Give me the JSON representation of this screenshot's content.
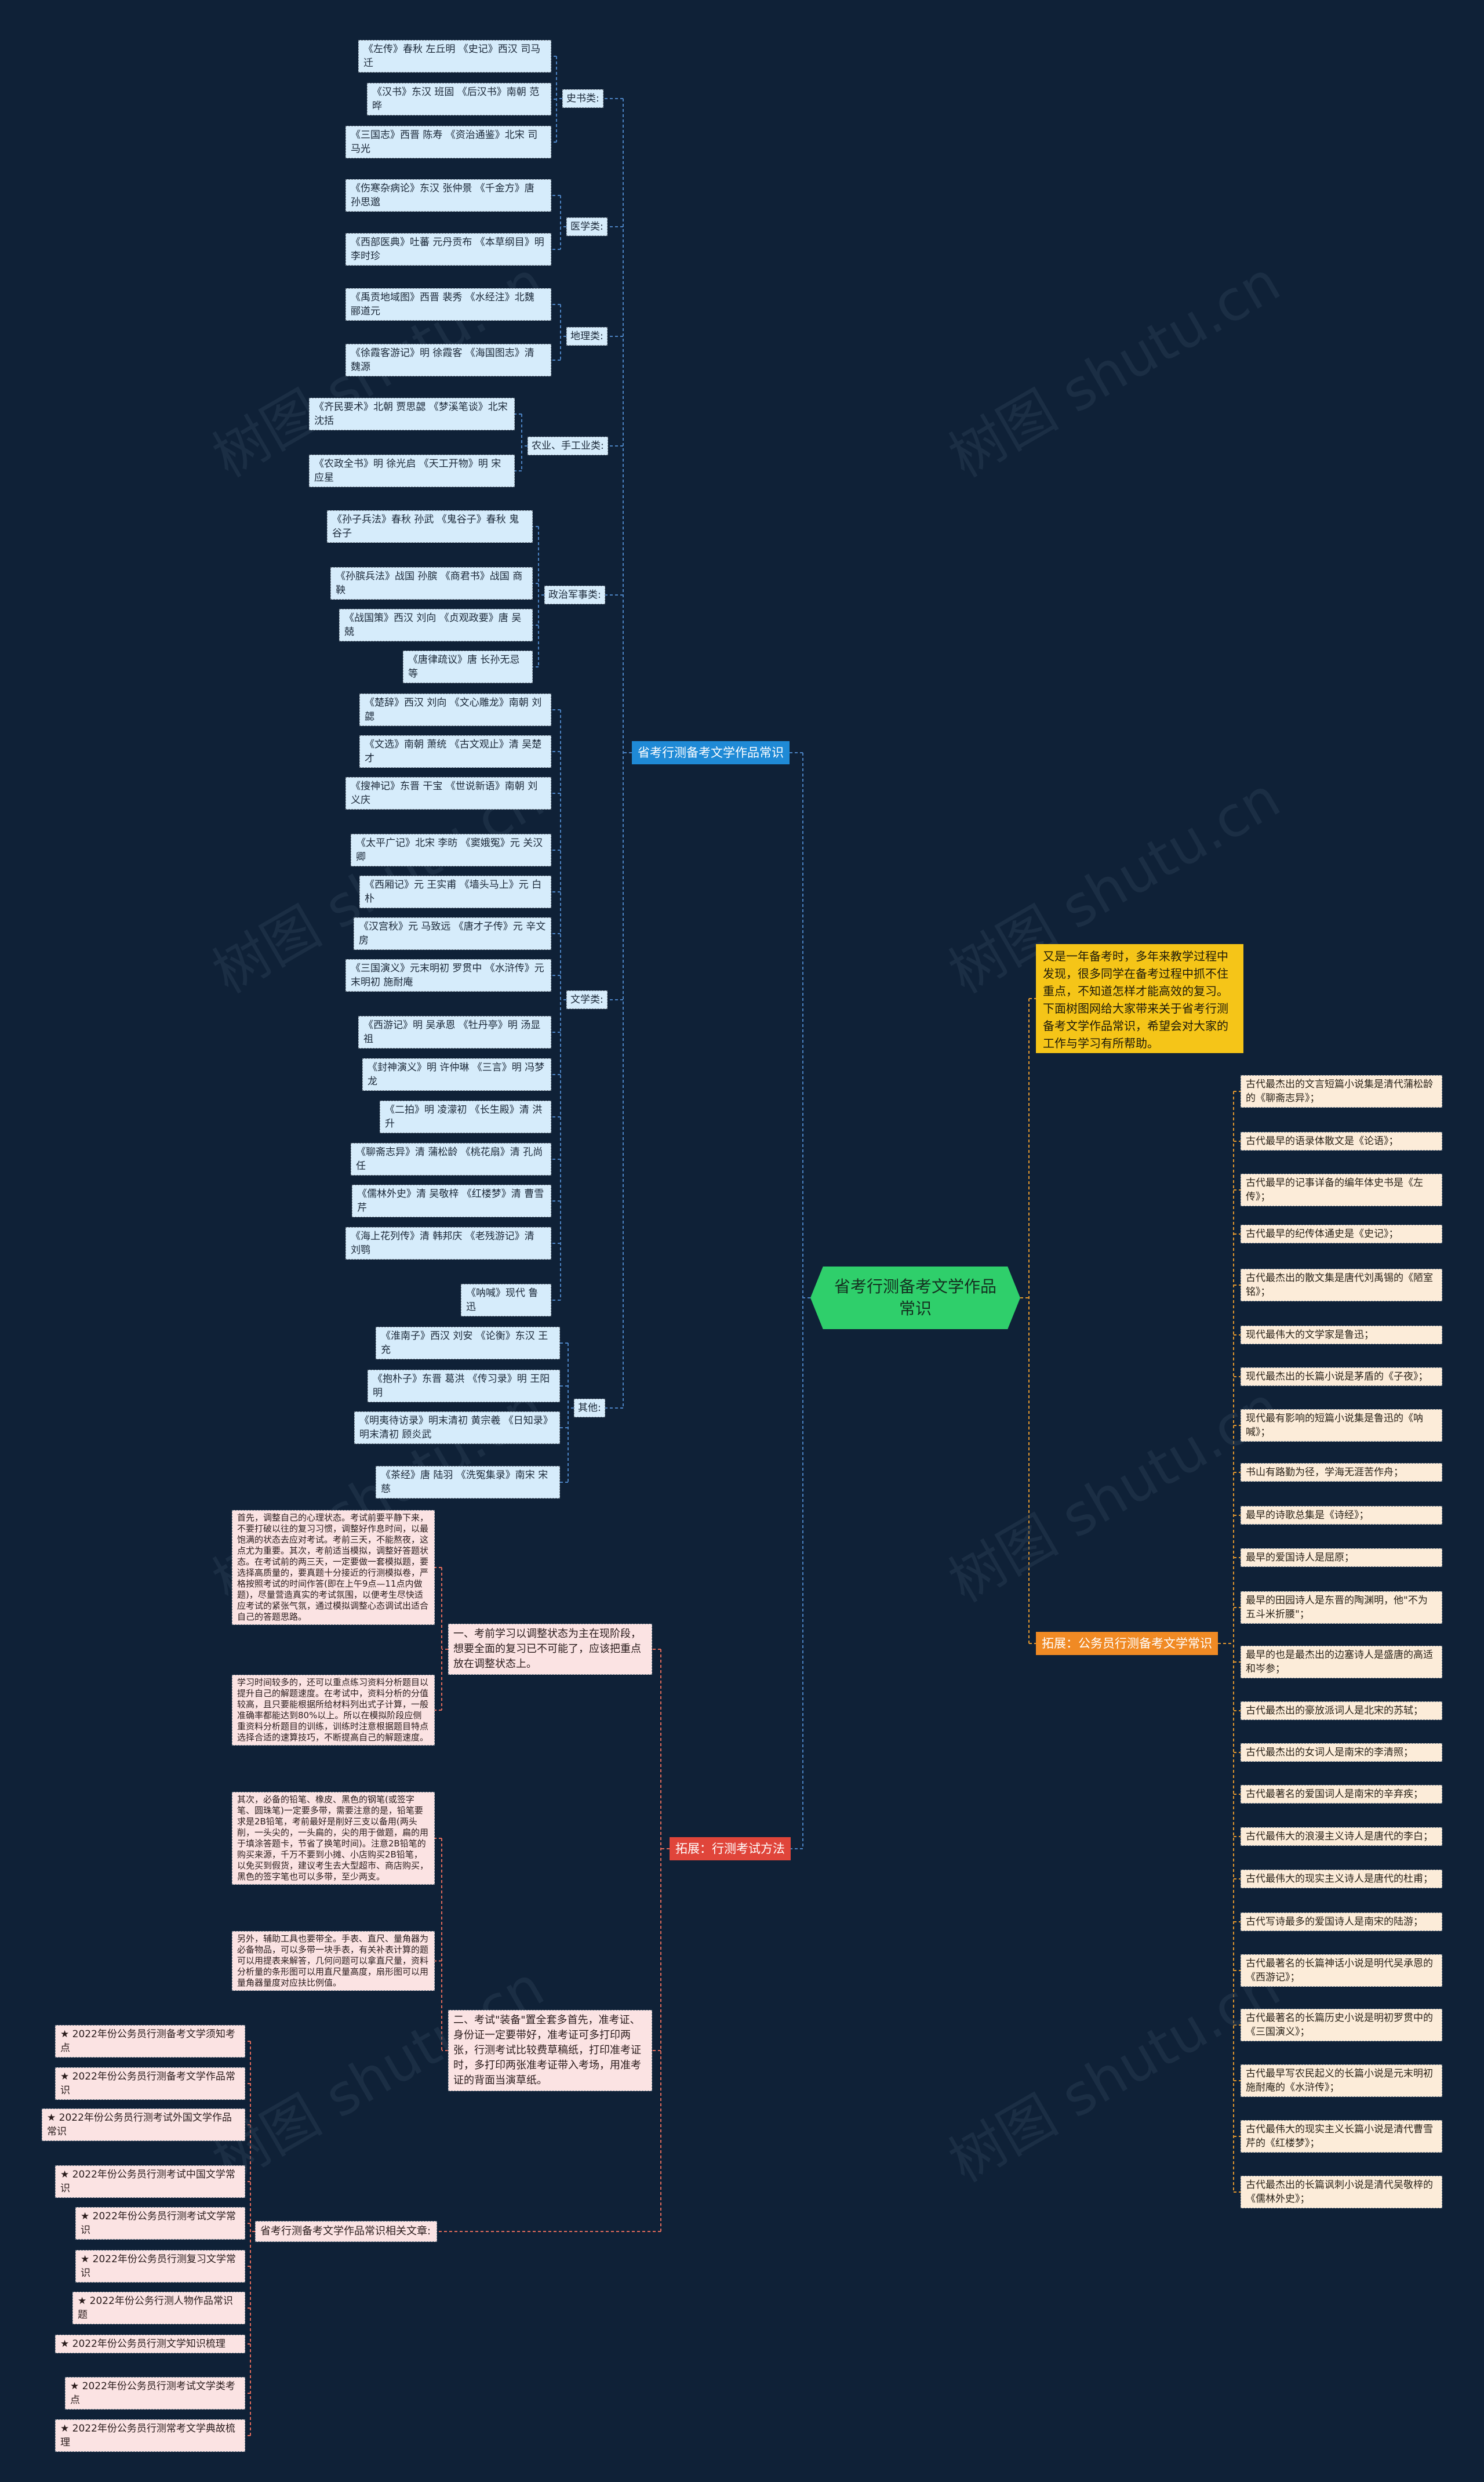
{
  "root": "省考行测备考文学作品常识",
  "intro": "又是一年备考时，多年来教学过程中发现，很多同学在备考过程中抓不住重点，不知道怎样才能高效的复习。下面树图网给大家带来关于省考行测备考文学作品常识，希望会对大家的工作与学习有所帮助。",
  "watermark": "树图 shutu.cn",
  "branch_main": "省考行测备考文学作品常识",
  "branch_exam": "拓展：行测考试方法",
  "branch_gwy": "拓展：公务员行测备考文学常识",
  "categories": {
    "history": "史书类:",
    "medical": "医学类:",
    "geo": "地理类:",
    "agri": "农业、手工业类:",
    "military": "政治军事类:",
    "lit": "文学类:",
    "other": "其他:"
  },
  "history_items": [
    "《左传》春秋 左丘明 《史记》西汉 司马迁",
    "《汉书》东汉 班固 《后汉书》南朝 范晔",
    "《三国志》西晋 陈寿 《资治通鉴》北宋 司马光"
  ],
  "medical_items": [
    "《伤寒杂病论》东汉 张仲景 《千金方》唐 孙思邈",
    "《西部医典》吐蕃 元丹贡布 《本草纲目》明 李时珍"
  ],
  "geo_items": [
    "《禹贡地域图》西晋 裴秀 《水经注》北魏 郦道元",
    "《徐霞客游记》明 徐霞客 《海国图志》清 魏源"
  ],
  "agri_items": [
    "《齐民要术》北朝 贾思勰 《梦溪笔谈》北宋 沈括",
    "《农政全书》明 徐光启 《天工开物》明 宋应星"
  ],
  "military_items": [
    "《孙子兵法》春秋 孙武 《鬼谷子》春秋 鬼谷子",
    "《孙膑兵法》战国 孙膑 《商君书》战国 商鞅",
    "《战国策》西汉 刘向 《贞观政要》唐 吴兢",
    "《唐律疏议》唐 长孙无忌等"
  ],
  "lit_items": [
    "《楚辞》西汉 刘向 《文心雕龙》南朝 刘勰",
    "《文选》南朝 萧统 《古文观止》清 吴楚才",
    "《搜神记》东晋 干宝 《世说新语》南朝 刘义庆",
    "《太平广记》北宋 李昉 《窦娥冤》元 关汉卿",
    "《西厢记》元 王实甫 《墙头马上》元 白朴",
    "《汉宫秋》元 马致远 《唐才子传》元 辛文房",
    "《三国演义》元末明初 罗贯中 《水浒传》元末明初 施耐庵",
    "《西游记》明 吴承恩 《牡丹亭》明 汤显祖",
    "《封神演义》明 许仲琳 《三言》明 冯梦龙",
    "《二拍》明 凌濛初 《长生殿》清 洪升",
    "《聊斋志异》清 蒲松龄 《桃花扇》清 孔尚任",
    "《儒林外史》清 吴敬梓 《红楼梦》清 曹雪芹",
    "《海上花列传》清 韩邦庆 《老残游记》清 刘鹗",
    "《呐喊》现代 鲁迅"
  ],
  "other_items": [
    "《淮南子》西汉 刘安 《论衡》东汉 王充",
    "《抱朴子》东晋 葛洪 《传习录》明 王阳明",
    "《明夷待访录》明末清初 黄宗羲 《日知录》明末清初 顾炎武",
    "《茶经》唐 陆羽 《洗冤集录》南宋 宋慈"
  ],
  "exam_point1": "一、考前学习以调整状态为主在现阶段，想要全面的复习已不可能了，应该把重点放在调整状态上。",
  "exam_point1_details": [
    "首先，调整自己的心理状态。考试前要平静下来，不要打破以往的复习习惯，调整好作息时间，以最饱满的状态去应对考试。考前三天，不能熬夜，这点尤为重要。其次，考前适当模拟，调整好答题状态。在考试前的两三天，一定要做一套模拟题，要选择高质量的，要真题十分接近的行测模拟卷，严格按照考试的时间作答(即在上午9点—11点内做题)，尽量营造真实的考试氛围，以便考生尽快适应考试的紧张气氛，通过模拟调整心态调试出适合自己的答题思路。",
    "学习时间较多的，还可以重点练习资料分析题目以提升自己的解题速度。在考试中，资料分析的分值较高，且只要能根据所给材料列出式子计算，一般准确率都能达到80%以上。所以在模拟阶段应侧重资料分析题目的训练，训练时注意根据题目特点选择合适的速算技巧，不断提高自己的解题速度。"
  ],
  "exam_point2": "二、考试\"装备\"置全套多首先，准考证、身份证一定要带好，准考证可多打印两张，行测考试比较费草稿纸，打印准考证时，多打印两张准考证带入考场，用准考证的背面当演草纸。",
  "exam_point2_details": [
    "其次，必备的铅笔、橡皮、黑色的钢笔(或签字笔、圆珠笔)一定要多带，需要注意的是，铅笔要求是2B铅笔，考前最好是削好三支以备用(两头削，一头尖的，一头扁的，尖的用于做题，扁的用于填涂答题卡，节省了换笔时间)。注意2B铅笔的购买来源，千万不要到小摊、小店购买2B铅笔，以免买到假货，建议考生去大型超市、商店购买，黑色的签字笔也可以多带，至少两支。",
    "另外，辅助工具也要带全。手表、直尺、量角器为必备物品，可以多带一块手表，有关补表计算的题可以用提表来解答，几何问题可以拿直尺量，资料分析量的条形图可以用直尺量高度，扇形图可以用量角器量度对应扶比例值。"
  ],
  "related_title": "省考行测备考文学作品常识相关文章:",
  "related_items": [
    "★ 2022年份公务员行测备考文学须知考点",
    "★ 2022年份公务员行测备考文学作品常识",
    "★ 2022年份公务员行测考试外国文学作品常识",
    "★ 2022年份公务员行测考试中国文学常识",
    "★ 2022年份公务员行测考试文学常识",
    "★ 2022年份公务员行测复习文学常识",
    "★ 2022年份公务行测人物作品常识题",
    "★ 2022年份公务员行测文学知识梳理",
    "★ 2022年份公务员行测考试文学类考点",
    "★ 2022年份公务员行测常考文学典故梳理"
  ],
  "gwy_items": [
    "古代最杰出的文言短篇小说集是清代蒲松龄的《聊斋志异》；",
    "古代最早的语录体散文是《论语》；",
    "古代最早的记事详备的编年体史书是《左传》；",
    "古代最早的纪传体通史是《史记》；",
    "古代最杰出的散文集是唐代刘禹锡的《陋室铭》；",
    "现代最伟大的文学家是鲁迅；",
    "现代最杰出的长篇小说是茅盾的《子夜》；",
    "现代最有影响的短篇小说集是鲁迅的《呐喊》；",
    "书山有路勤为径，学海无涯苦作舟；",
    "最早的诗歌总集是《诗经》；",
    "最早的爱国诗人是屈原；",
    "最早的田园诗人是东晋的陶渊明，他\"不为五斗米折腰\"；",
    "最早的也是最杰出的边塞诗人是盛唐的高适和岑参；",
    "古代最杰出的豪放派词人是北宋的苏轼；",
    "古代最杰出的女词人是南宋的李清照；",
    "古代最著名的爱国词人是南宋的辛弃疾；",
    "古代最伟大的浪漫主义诗人是唐代的李白；",
    "古代最伟大的现实主义诗人是唐代的杜甫；",
    "古代写诗最多的爱国诗人是南宋的陆游；",
    "古代最著名的长篇神话小说是明代吴承恩的《西游记》；",
    "古代最著名的长篇历史小说是明初罗贯中的《三国演义》；",
    "古代最早写农民起义的长篇小说是元末明初施耐庵的《水浒传》；",
    "古代最伟大的现实主义长篇小说是清代曹雪芹的《红楼梦》；",
    "古代最杰出的长篇讽刺小说是清代吴敬梓的《儒林外史》；"
  ],
  "colors": {
    "background": "#0f2137",
    "root": "#2fcf6b",
    "intro": "#f5c518",
    "branch_main": "#1f8ad6",
    "branch_exam": "#e0453a",
    "branch_gwy": "#f08a24",
    "leaf_blue": "#d6ecfb",
    "leaf_pink": "#fbe3e3",
    "leaf_peach": "#fcecd9",
    "line_main": "#4b82c2",
    "line_exam": "#e06a5a",
    "line_gwy": "#e0962e"
  }
}
